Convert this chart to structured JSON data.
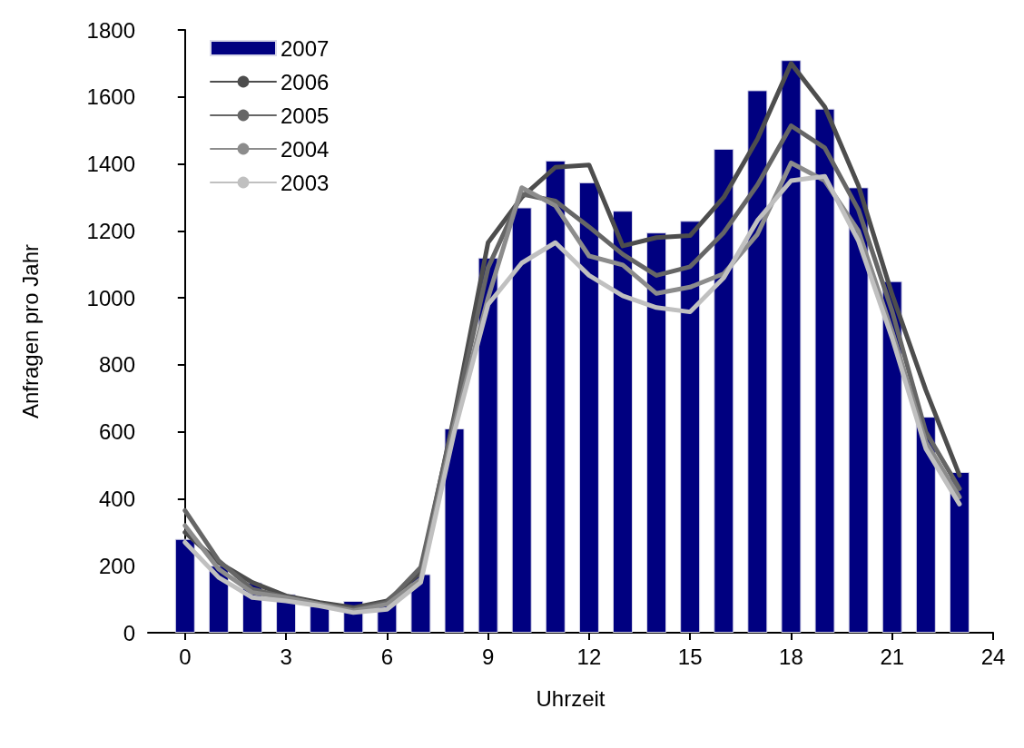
{
  "chart_data": {
    "type": "line",
    "xlabel": "Uhrzeit",
    "ylabel": "Anfragen pro Jahr",
    "x": [
      0,
      1,
      2,
      3,
      4,
      5,
      6,
      7,
      8,
      9,
      10,
      11,
      12,
      13,
      14,
      15,
      16,
      17,
      18,
      19,
      20,
      21,
      22,
      23
    ],
    "xlim": [
      -1.1,
      24
    ],
    "xticks": [
      0,
      3,
      6,
      9,
      12,
      15,
      18,
      21,
      24
    ],
    "ylim": [
      0,
      1800
    ],
    "yticks": [
      0,
      200,
      400,
      600,
      800,
      1000,
      1200,
      1400,
      1600,
      1800
    ],
    "grid": false,
    "legend": "top left",
    "marker": "none",
    "line_style": "solid",
    "series": [
      {
        "name": "2007",
        "type": "bar",
        "color": "#000080",
        "values": [
          280,
          200,
          150,
          115,
          80,
          95,
          95,
          175,
          610,
          1120,
          1270,
          1410,
          1345,
          1260,
          1195,
          1230,
          1445,
          1620,
          1710,
          1565,
          1330,
          1050,
          645,
          480
        ]
      },
      {
        "name": "2006",
        "color": "#4d4d4d",
        "values": [
          300,
          210,
          150,
          110,
          90,
          75,
          95,
          180,
          650,
          1165,
          1300,
          1390,
          1397,
          1155,
          1180,
          1186,
          1300,
          1474,
          1700,
          1570,
          1335,
          1010,
          725,
          470
        ]
      },
      {
        "name": "2005",
        "color": "#666666",
        "values": [
          365,
          215,
          130,
          105,
          85,
          70,
          90,
          195,
          640,
          1090,
          1310,
          1289,
          1212,
          1130,
          1067,
          1093,
          1195,
          1337,
          1514,
          1448,
          1263,
          960,
          600,
          430
        ]
      },
      {
        "name": "2004",
        "color": "#8c8c8c",
        "values": [
          320,
          190,
          120,
          105,
          85,
          65,
          85,
          160,
          620,
          1000,
          1329,
          1275,
          1125,
          1098,
          1013,
          1032,
          1072,
          1190,
          1403,
          1350,
          1200,
          900,
          570,
          405
        ]
      },
      {
        "name": "2003",
        "color": "#c0c0c0",
        "values": [
          270,
          165,
          105,
          95,
          80,
          60,
          70,
          150,
          600,
          980,
          1104,
          1165,
          1067,
          1006,
          971,
          958,
          1060,
          1231,
          1350,
          1363,
          1170,
          880,
          550,
          384
        ]
      }
    ]
  }
}
